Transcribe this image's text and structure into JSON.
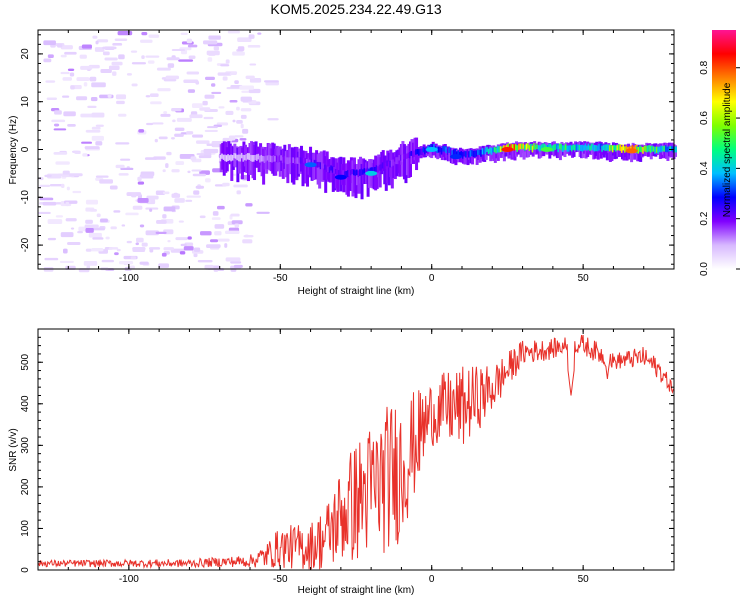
{
  "title": "KOM5.2025.234.22.49.G13",
  "colors": {
    "snr_line": "#e8312a",
    "frame": "#000000",
    "background": "#ffffff"
  },
  "chart_data": [
    {
      "type": "heatmap",
      "name": "spectrogram",
      "xlabel": "Height of straight line (km)",
      "ylabel": "Frequency (Hz)",
      "xlim": [
        -130,
        80
      ],
      "ylim": [
        -25,
        25
      ],
      "xticks": [
        -100,
        -50,
        0,
        50
      ],
      "yticks": [
        -20,
        -10,
        0,
        10,
        20
      ],
      "colorbar": {
        "label": "Normalized spectral amplitude",
        "range": [
          0,
          0.95
        ],
        "ticks": [
          "0.0",
          "0.2",
          "0.4",
          "0.6",
          "0.8"
        ],
        "tick_values": [
          0,
          0.2,
          0.4,
          0.6,
          0.8
        ],
        "colors": [
          "#ffffff",
          "#d7b8ff",
          "#8000ff",
          "#0000ff",
          "#00bfff",
          "#00ff7f",
          "#7fff00",
          "#ffff00",
          "#ff8000",
          "#ff0000",
          "#ff1493"
        ]
      },
      "noise_region_km": [
        -130,
        -60
      ],
      "signal_trace": [
        {
          "x": -70,
          "f": -2,
          "amp": 0.08
        },
        {
          "x": -60,
          "f": -2,
          "amp": 0.12
        },
        {
          "x": -50,
          "f": -2.5,
          "amp": 0.2
        },
        {
          "x": -40,
          "f": -3,
          "amp": 0.22
        },
        {
          "x": -30,
          "f": -5.5,
          "amp": 0.25
        },
        {
          "x": -20,
          "f": -5,
          "amp": 0.3
        },
        {
          "x": -10,
          "f": -2,
          "amp": 0.2
        },
        {
          "x": 0,
          "f": 0,
          "amp": 0.38
        },
        {
          "x": 10,
          "f": -1.5,
          "amp": 0.3
        },
        {
          "x": 20,
          "f": -0.5,
          "amp": 0.45
        },
        {
          "x": 25,
          "f": 0,
          "amp": 0.85
        },
        {
          "x": 35,
          "f": 0,
          "amp": 0.55
        },
        {
          "x": 45,
          "f": 0,
          "amp": 0.5
        },
        {
          "x": 55,
          "f": 0,
          "amp": 0.45
        },
        {
          "x": 65,
          "f": -0.3,
          "amp": 0.8
        },
        {
          "x": 80,
          "f": -0.3,
          "amp": 0.4
        }
      ]
    },
    {
      "type": "line",
      "name": "snr",
      "xlabel": "Height of straight line (km)",
      "ylabel": "SNR (v/v)",
      "xlim": [
        -130,
        80
      ],
      "ylim": [
        0,
        580
      ],
      "xticks": [
        -100,
        -50,
        0,
        50
      ],
      "yticks": [
        0,
        100,
        200,
        300,
        400,
        500
      ],
      "envelope": [
        {
          "x": -130,
          "base": 15,
          "amp": 8
        },
        {
          "x": -80,
          "base": 15,
          "amp": 10
        },
        {
          "x": -70,
          "base": 18,
          "amp": 12
        },
        {
          "x": -60,
          "base": 20,
          "amp": 15
        },
        {
          "x": -55,
          "base": 30,
          "amp": 30
        },
        {
          "x": -50,
          "base": 50,
          "amp": 50
        },
        {
          "x": -40,
          "base": 50,
          "amp": 60
        },
        {
          "x": -35,
          "base": 70,
          "amp": 80
        },
        {
          "x": -30,
          "base": 120,
          "amp": 120
        },
        {
          "x": -25,
          "base": 150,
          "amp": 150
        },
        {
          "x": -20,
          "base": 180,
          "amp": 160
        },
        {
          "x": -15,
          "base": 200,
          "amp": 180
        },
        {
          "x": -10,
          "base": 230,
          "amp": 180
        },
        {
          "x": -5,
          "base": 300,
          "amp": 120
        },
        {
          "x": 0,
          "base": 370,
          "amp": 80
        },
        {
          "x": 5,
          "base": 380,
          "amp": 90
        },
        {
          "x": 10,
          "base": 380,
          "amp": 100
        },
        {
          "x": 20,
          "base": 430,
          "amp": 60
        },
        {
          "x": 30,
          "base": 520,
          "amp": 30
        },
        {
          "x": 40,
          "base": 530,
          "amp": 25
        },
        {
          "x": 45,
          "base": 540,
          "amp": 20
        },
        {
          "x": 50,
          "base": 540,
          "amp": 25
        },
        {
          "x": 55,
          "base": 520,
          "amp": 25
        },
        {
          "x": 60,
          "base": 500,
          "amp": 20
        },
        {
          "x": 70,
          "base": 510,
          "amp": 25
        },
        {
          "x": 75,
          "base": 480,
          "amp": 25
        },
        {
          "x": 80,
          "base": 430,
          "amp": 15
        }
      ],
      "dips": [
        {
          "x": 46,
          "value": 420
        },
        {
          "x": 58,
          "value": 460
        }
      ]
    }
  ]
}
